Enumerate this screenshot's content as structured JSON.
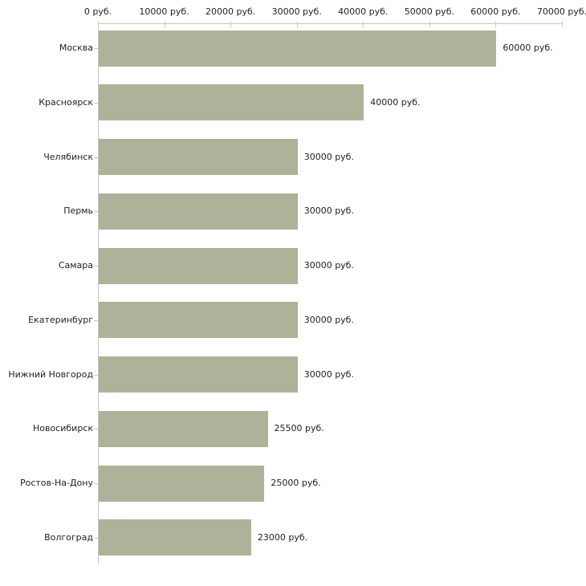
{
  "chart_data": {
    "type": "bar",
    "orientation": "horizontal",
    "title": "",
    "categories": [
      "Москва",
      "Красноярск",
      "Челябинск",
      "Пермь",
      "Самара",
      "Екатеринбург",
      "Нижний Новгород",
      "Новосибирск",
      "Ростов-На-Дону",
      "Волгоград"
    ],
    "values": [
      60000,
      40000,
      30000,
      30000,
      30000,
      30000,
      30000,
      25500,
      25000,
      23000
    ],
    "value_labels": [
      "60000 руб.",
      "40000 руб.",
      "30000 руб.",
      "30000 руб.",
      "30000 руб.",
      "30000 руб.",
      "30000 руб.",
      "25500 руб.",
      "25000 руб.",
      "23000 руб."
    ],
    "x_axis": {
      "position": "top",
      "min": 0,
      "max": 70000,
      "ticks": [
        0,
        10000,
        20000,
        30000,
        40000,
        50000,
        60000,
        70000
      ],
      "tick_labels": [
        "0 руб.",
        "10000 руб.",
        "20000 руб.",
        "30000 руб.",
        "40000 руб.",
        "50000 руб.",
        "60000 руб.",
        "70000 руб."
      ]
    },
    "grid": false,
    "legend": false,
    "colors": {
      "bar": "#adb399",
      "axis_line": "#c6c6c6",
      "tick_mark": "#cdd0ab",
      "text": "#222222",
      "background": "#ffffff"
    }
  }
}
